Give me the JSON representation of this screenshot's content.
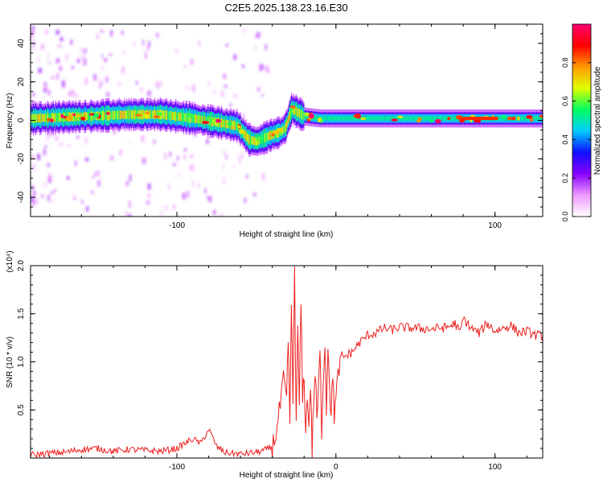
{
  "title": "C2E5.2025.138.23.16.E30",
  "chart_data": [
    {
      "type": "heatmap",
      "xlabel": "Height of straight line (km)",
      "ylabel": "Frequency (Hz)",
      "xlim": [
        -192,
        130
      ],
      "ylim": [
        -50,
        50
      ],
      "xticks": [
        -100,
        0,
        100
      ],
      "xtick_labels": [
        "-100",
        "",
        "100"
      ],
      "yticks": [
        -40,
        -20,
        0,
        20,
        40
      ],
      "ytick_labels": [
        "-40",
        "-20",
        "0",
        "20",
        "40"
      ],
      "colorbar": {
        "label": "Normalized spectral amplitude",
        "range": [
          0,
          1
        ],
        "ticks": [
          0.0,
          0.2,
          0.4,
          0.6,
          0.8
        ],
        "tick_labels": [
          "0.0",
          "0.2",
          "0.4",
          "0.6",
          "0.8"
        ],
        "colors": [
          "#ffffff",
          "#ee99ff",
          "#8800ff",
          "#1010ff",
          "#00ccff",
          "#00ff60",
          "#e0ff00",
          "#ff9900",
          "#ff0000",
          "#ff0070"
        ]
      },
      "ridge": {
        "x": [
          -192,
          -160,
          -130,
          -110,
          -90,
          -75,
          -62,
          -55,
          -50,
          -42,
          -35,
          -32,
          -28,
          -20,
          -10,
          0,
          20,
          60,
          130
        ],
        "freq": [
          1,
          2,
          3,
          3,
          1,
          -1,
          -3,
          -10,
          -11,
          -8,
          -6,
          -4,
          6,
          2,
          1,
          1,
          1,
          1,
          1
        ]
      }
    },
    {
      "type": "line",
      "xlabel": "Height of straight line (km)",
      "ylabel": "SNR (10 * v/v)",
      "multiplier": "(x10⁴)",
      "xlim": [
        -192,
        130
      ],
      "ylim": [
        0,
        2.0
      ],
      "xticks": [
        -100,
        0,
        100
      ],
      "xtick_labels": [
        "-100",
        "0",
        "100"
      ],
      "yticks": [
        0.5,
        1.0,
        1.5,
        2.0
      ],
      "ytick_labels": [
        "0.5",
        "1.0",
        "1.5",
        "2.0"
      ],
      "series": [
        {
          "color": "#ee2020",
          "x": [
            -192,
            -180,
            -170,
            -160,
            -150,
            -140,
            -130,
            -120,
            -110,
            -100,
            -95,
            -90,
            -85,
            -80,
            -75,
            -70,
            -60,
            -50,
            -45,
            -40,
            -37,
            -35,
            -33,
            -31,
            -30,
            -29,
            -28,
            -27,
            -26,
            -25,
            -24,
            -23,
            -22,
            -21,
            -20,
            -19,
            -18,
            -17,
            -16,
            -15,
            -14,
            -13,
            -12,
            -11,
            -10,
            -9,
            -8,
            -7,
            -6,
            -5,
            -4,
            -3,
            -2,
            -1,
            0,
            2,
            5,
            10,
            15,
            20,
            25,
            30,
            35,
            40,
            50,
            60,
            70,
            75,
            78,
            80,
            85,
            90,
            95,
            100,
            105,
            110,
            115,
            120,
            125,
            130
          ],
          "values": [
            0.03,
            0.05,
            0.06,
            0.09,
            0.1,
            0.07,
            0.09,
            0.08,
            0.07,
            0.1,
            0.15,
            0.2,
            0.15,
            0.3,
            0.12,
            0.06,
            0.04,
            0.06,
            0.08,
            0.12,
            0.3,
            0.55,
            0.8,
            0.6,
            1.2,
            0.4,
            1.5,
            0.6,
            2.0,
            0.3,
            1.4,
            0.5,
            1.65,
            0.6,
            0.9,
            0.2,
            0.7,
            0.3,
            0.8,
            0.05,
            0.6,
            0.9,
            0.4,
            0.7,
            1.1,
            0.3,
            0.8,
            1.25,
            0.5,
            1.2,
            0.8,
            0.4,
            0.9,
            0.45,
            0.6,
            0.95,
            1.05,
            1.1,
            1.2,
            1.28,
            1.3,
            1.35,
            1.33,
            1.36,
            1.35,
            1.34,
            1.36,
            1.4,
            1.3,
            1.45,
            1.35,
            1.3,
            1.4,
            1.32,
            1.35,
            1.38,
            1.3,
            1.32,
            1.28,
            1.27
          ]
        }
      ]
    }
  ]
}
